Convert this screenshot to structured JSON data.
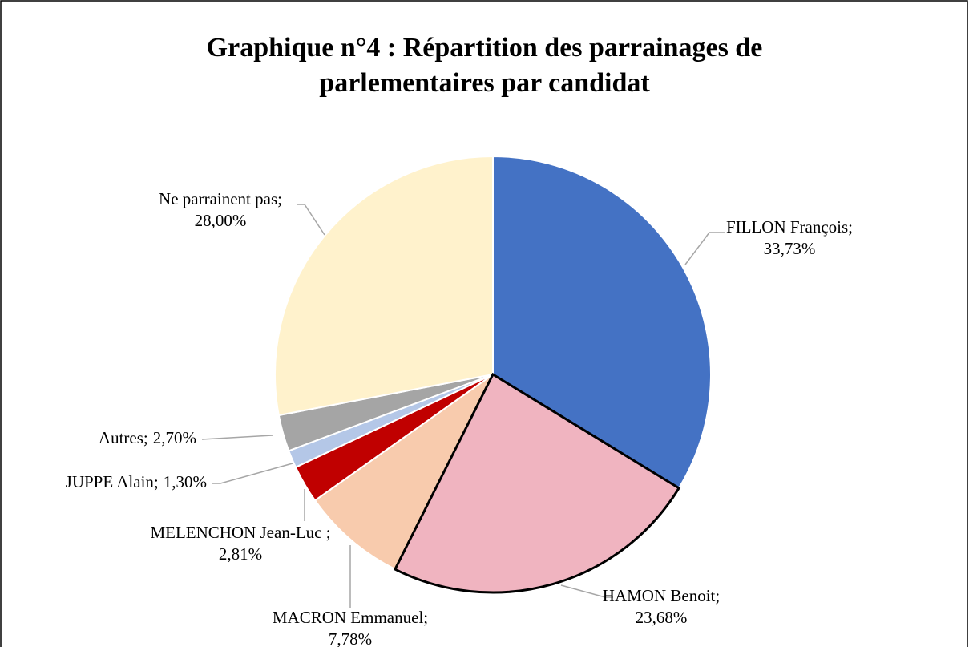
{
  "chart_data": {
    "type": "pie",
    "title": "Graphique n°4 : Répartition des parrainages de parlementaires par candidat",
    "categories": [
      "FILLON François;",
      "HAMON Benoit;",
      "MACRON Emmanuel;",
      "MELENCHON Jean-Luc ;",
      "JUPPE Alain;",
      "Autres;",
      "Ne parrainent pas;"
    ],
    "values": [
      33.73,
      23.68,
      7.78,
      2.81,
      1.3,
      2.7,
      28.0
    ],
    "value_labels": [
      "33,73%",
      "23,68%",
      "7,78%",
      "2,81%",
      "1,30%",
      "2,70%",
      "28,00%"
    ],
    "colors": [
      "#4472c4",
      "#f0b4c0",
      "#f8cbad",
      "#c00000",
      "#b4c7e7",
      "#a5a5a5",
      "#fff2cc"
    ]
  }
}
